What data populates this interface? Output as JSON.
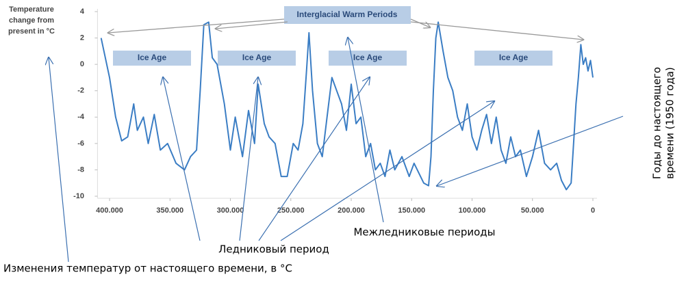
{
  "chart_data": {
    "type": "line",
    "y_label_lines": [
      "Temperature",
      "change from",
      "present in °C"
    ],
    "interglacial_label": "Interglacial Warm Periods",
    "ice_age_labels": [
      "Ice Age",
      "Ice Age",
      "Ice Age",
      "Ice Age"
    ],
    "notes": {
      "years_lines": [
        "Годы до настоящего",
        "времени (1950 года)"
      ],
      "interglacial": "Межледниковые периоды",
      "glacial": "Ледниковый период",
      "temperature": "Изменения температур от настоящего времени, в °C"
    },
    "color": "#3a7dc4",
    "x": [
      407000,
      400000,
      395000,
      390000,
      385000,
      380000,
      377000,
      372000,
      368000,
      363000,
      358000,
      352000,
      345000,
      338000,
      333000,
      328000,
      325000,
      322000,
      318000,
      315000,
      311000,
      305000,
      300000,
      296000,
      290000,
      285000,
      280000,
      277000,
      272000,
      268000,
      263000,
      258000,
      253000,
      248000,
      244000,
      240000,
      237000,
      235000,
      232000,
      228000,
      224000,
      220000,
      216000,
      212000,
      208000,
      204000,
      200000,
      196000,
      192000,
      188000,
      184000,
      180000,
      176000,
      172000,
      168000,
      164000,
      158000,
      152000,
      148000,
      140000,
      136000,
      134000,
      132000,
      130000,
      128000,
      124000,
      120000,
      116000,
      112000,
      108000,
      104000,
      100000,
      96000,
      92000,
      88000,
      84000,
      80000,
      76000,
      72000,
      68000,
      64000,
      60000,
      55000,
      50000,
      45000,
      40000,
      35000,
      30000,
      26000,
      22000,
      18000,
      16000,
      14000,
      12000,
      10000,
      8000,
      6000,
      4000,
      2000,
      0
    ],
    "values": [
      2,
      -1,
      -4,
      -5.8,
      -5.5,
      -3,
      -5,
      -4,
      -6,
      -3.8,
      -6.5,
      -6,
      -7.5,
      -8,
      -7,
      -6.5,
      -2,
      3,
      3.2,
      0.5,
      0,
      -3,
      -6.5,
      -4,
      -7,
      -3.5,
      -6,
      -1.5,
      -4.5,
      -5.5,
      -6,
      -8.5,
      -8.5,
      -6,
      -6.5,
      -4.5,
      -0.5,
      2.4,
      -2,
      -6,
      -7,
      -4,
      -1,
      -2,
      -3,
      -5,
      -1.5,
      -4.5,
      -4,
      -7,
      -6,
      -8,
      -7.5,
      -8.5,
      -6.5,
      -8,
      -7,
      -8.5,
      -7.5,
      -9,
      -9.2,
      -7,
      -2,
      2,
      3.2,
      1,
      -1,
      -2,
      -4,
      -5,
      -3,
      -5.5,
      -6.5,
      -5,
      -3.8,
      -6,
      -4,
      -6.5,
      -7.5,
      -5.5,
      -7,
      -6.5,
      -8.5,
      -7,
      -5,
      -7.5,
      -8,
      -7.5,
      -8.8,
      -9.5,
      -9,
      -6,
      -3,
      -1,
      1.5,
      0,
      0.5,
      -0.5,
      0.3,
      -1
    ],
    "xlim": [
      410000,
      0
    ],
    "xticks": [
      {
        "value": 400000,
        "label": "400.000"
      },
      {
        "value": 350000,
        "label": "350.000"
      },
      {
        "value": 300000,
        "label": "300.000"
      },
      {
        "value": 250000,
        "label": "250.000"
      },
      {
        "value": 200000,
        "label": "200.000"
      },
      {
        "value": 150000,
        "label": "150.000"
      },
      {
        "value": 100000,
        "label": "100.000"
      },
      {
        "value": 50000,
        "label": "50.000"
      },
      0
    ],
    "ylim": [
      -10,
      4
    ],
    "yticks": [
      4,
      2,
      0,
      -2,
      -4,
      -6,
      -8,
      -10
    ]
  }
}
